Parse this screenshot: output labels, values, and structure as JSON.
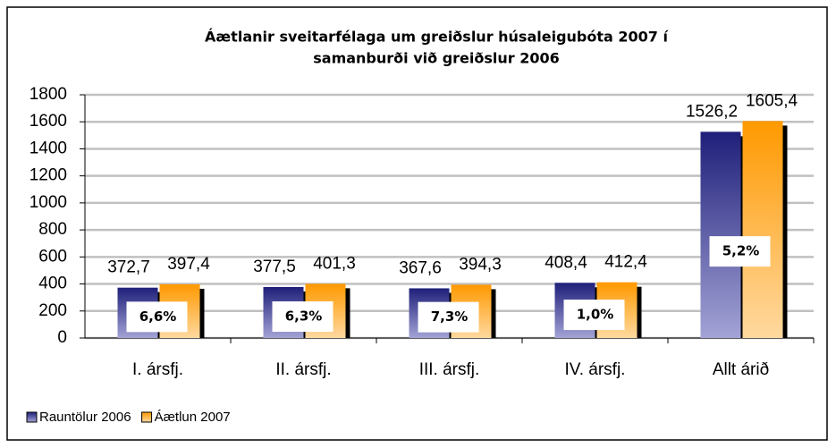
{
  "chart_data": {
    "type": "bar",
    "title": [
      "Áætlanir sveitarfélaga um greiðslur húsaleigubóta 2007 í",
      "samanburði við greiðslur 2006"
    ],
    "categories": [
      "I. ársfj.",
      "II. ársfj.",
      "III. ársfj.",
      "IV. ársfj.",
      "Allt árið"
    ],
    "series": [
      {
        "name": "Rauntölur 2006",
        "color": "#1f1f7a",
        "values": [
          372.7,
          377.5,
          367.6,
          408.4,
          1526.2
        ],
        "value_labels": [
          "372,7",
          "377,5",
          "367,6",
          "408,4",
          "1526,2"
        ]
      },
      {
        "name": "Áætlun 2007",
        "color": "#ff9900",
        "values": [
          397.4,
          401.3,
          394.3,
          412.4,
          1605.4
        ],
        "value_labels": [
          "397,4",
          "401,3",
          "394,3",
          "412,4",
          "1605,4"
        ]
      }
    ],
    "annotations": [
      "6,6%",
      "6,3%",
      "7,3%",
      "1,0%",
      "5,2%"
    ],
    "ylim": [
      0,
      1800
    ],
    "yticks": [
      0,
      200,
      400,
      600,
      800,
      1000,
      1200,
      1400,
      1600,
      1800
    ],
    "grid": true,
    "legend": "bottom-left"
  }
}
